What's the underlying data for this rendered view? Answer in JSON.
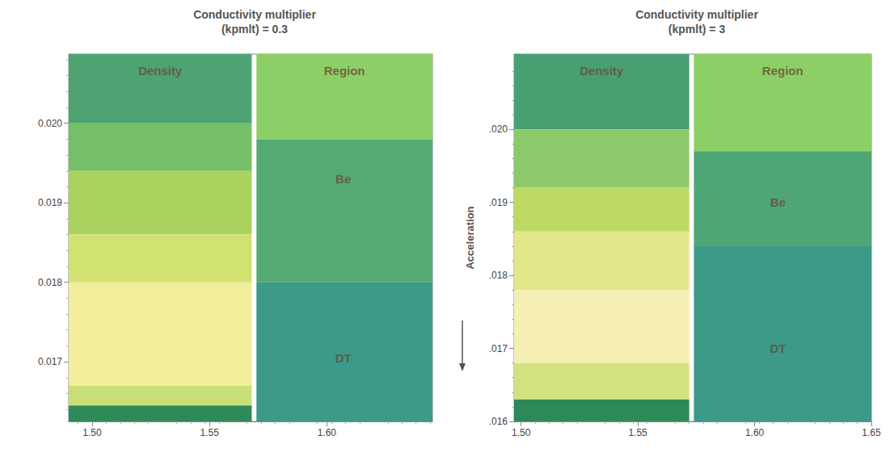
{
  "chart_data": [
    {
      "type": "image",
      "title": "Conductivity multiplier (kpmlt) = 0.3",
      "xlim": [
        1.49,
        1.645
      ],
      "xticks": [
        {
          "value": 1.5,
          "label": "1.50"
        },
        {
          "value": 1.55,
          "label": "1.55"
        },
        {
          "value": 1.6,
          "label": "1.60"
        }
      ],
      "ylim": [
        0.01625,
        0.02087
      ],
      "yticks": [
        {
          "value": 0.017,
          "label": "0.017"
        },
        {
          "value": 0.018,
          "label": "0.018"
        },
        {
          "value": 0.019,
          "label": "0.019"
        },
        {
          "value": 0.02,
          "label": "0.020"
        }
      ],
      "panels": [
        {
          "label": "Density",
          "xlim": [
            1.49,
            1.568
          ],
          "bands": [
            {
              "ylim": [
                0.02,
                0.02087
              ],
              "color": "#4ea373"
            },
            {
              "ylim": [
                0.0194,
                0.02
              ],
              "color": "#74bf68"
            },
            {
              "ylim": [
                0.0186,
                0.0194
              ],
              "color": "#a9d35e"
            },
            {
              "ylim": [
                0.018,
                0.0186
              ],
              "color": "#d2e272"
            },
            {
              "ylim": [
                0.0167,
                0.018
              ],
              "color": "#f2ee9c"
            },
            {
              "ylim": [
                0.01645,
                0.0167
              ],
              "color": "#c9df78"
            },
            {
              "ylim": [
                0.01625,
                0.01645
              ],
              "color": "#2f8a5a"
            }
          ]
        },
        {
          "label": "Region",
          "xlim": [
            1.57,
            1.645
          ],
          "bands": [
            {
              "ylim": [
                0.0198,
                0.02087
              ],
              "color": "#8ccf66"
            },
            {
              "ylim": [
                0.018,
                0.0198
              ],
              "color": "#55aa72"
            },
            {
              "ylim": [
                0.01625,
                0.018
              ],
              "color": "#3b9a88"
            }
          ]
        }
      ],
      "annotations": [
        {
          "text": "Be",
          "x": 1.607,
          "y": 0.0193
        },
        {
          "text": "DT",
          "x": 1.607,
          "y": 0.01705
        }
      ]
    },
    {
      "type": "image",
      "title": "Conductivity multiplier (kpmlt) = 3",
      "ylabel": "Acceleration",
      "xlim": [
        1.497,
        1.65
      ],
      "xticks": [
        {
          "value": 1.5,
          "label": "1.50"
        },
        {
          "value": 1.55,
          "label": "1.55"
        },
        {
          "value": 1.6,
          "label": "1.60"
        },
        {
          "value": 1.65,
          "label": "1.65"
        }
      ],
      "ylim": [
        0.016,
        0.02103
      ],
      "yticks": [
        {
          "value": 0.016,
          "label": ".016"
        },
        {
          "value": 0.017,
          "label": ".017"
        },
        {
          "value": 0.018,
          "label": ".018"
        },
        {
          "value": 0.019,
          "label": ".019"
        },
        {
          "value": 0.02,
          "label": ".020"
        }
      ],
      "panels": [
        {
          "label": "Density",
          "xlim": [
            1.497,
            1.572
          ],
          "bands": [
            {
              "ylim": [
                0.02,
                0.02103
              ],
              "color": "#47a072"
            },
            {
              "ylim": [
                0.0192,
                0.02
              ],
              "color": "#8cc96a"
            },
            {
              "ylim": [
                0.0186,
                0.0192
              ],
              "color": "#bddb62"
            },
            {
              "ylim": [
                0.0178,
                0.0186
              ],
              "color": "#e2e78a"
            },
            {
              "ylim": [
                0.0168,
                0.0178
              ],
              "color": "#f5efb4"
            },
            {
              "ylim": [
                0.0163,
                0.0168
              ],
              "color": "#d3e27e"
            },
            {
              "ylim": [
                0.016,
                0.0163
              ],
              "color": "#2d8a58"
            }
          ]
        },
        {
          "label": "Region",
          "xlim": [
            1.574,
            1.65
          ],
          "bands": [
            {
              "ylim": [
                0.0197,
                0.02103
              ],
              "color": "#8ccf66"
            },
            {
              "ylim": [
                0.0184,
                0.0197
              ],
              "color": "#4ea676"
            },
            {
              "ylim": [
                0.016,
                0.0184
              ],
              "color": "#3b9a88"
            }
          ]
        }
      ],
      "annotations": [
        {
          "text": "Be",
          "x": 1.61,
          "y": 0.019
        },
        {
          "text": "DT",
          "x": 1.61,
          "y": 0.017
        }
      ]
    }
  ]
}
